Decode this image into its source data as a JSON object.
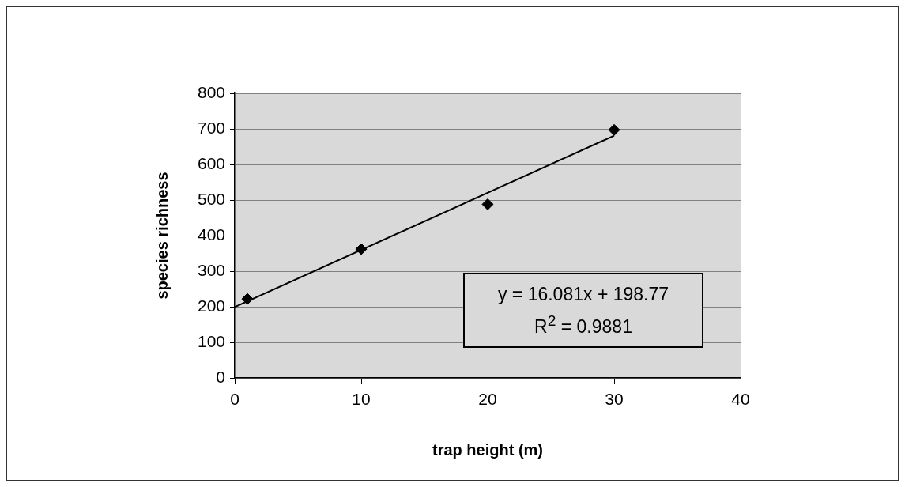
{
  "chart_data": {
    "type": "scatter",
    "xlabel": "trap height (m)",
    "ylabel": "species richness",
    "xlim": [
      0,
      40
    ],
    "xticks": [
      0,
      10,
      20,
      30,
      40
    ],
    "ylim": [
      0,
      800
    ],
    "yticks": [
      0,
      100,
      200,
      300,
      400,
      500,
      600,
      700,
      800
    ],
    "grid": "y",
    "legend": false,
    "series": [
      {
        "type": "scatter",
        "color": "#000000",
        "marker": "diamond",
        "x": [
          1,
          10,
          20,
          30
        ],
        "values": [
          222,
          362,
          488,
          697
        ]
      },
      {
        "type": "line",
        "color": "#000000",
        "marker": "none",
        "x": [
          0,
          30
        ],
        "values": [
          199,
          681
        ]
      }
    ],
    "annotations": [
      "y = 16.081x + 198.77",
      "R$^{2}$ = 0.9881"
    ]
  }
}
